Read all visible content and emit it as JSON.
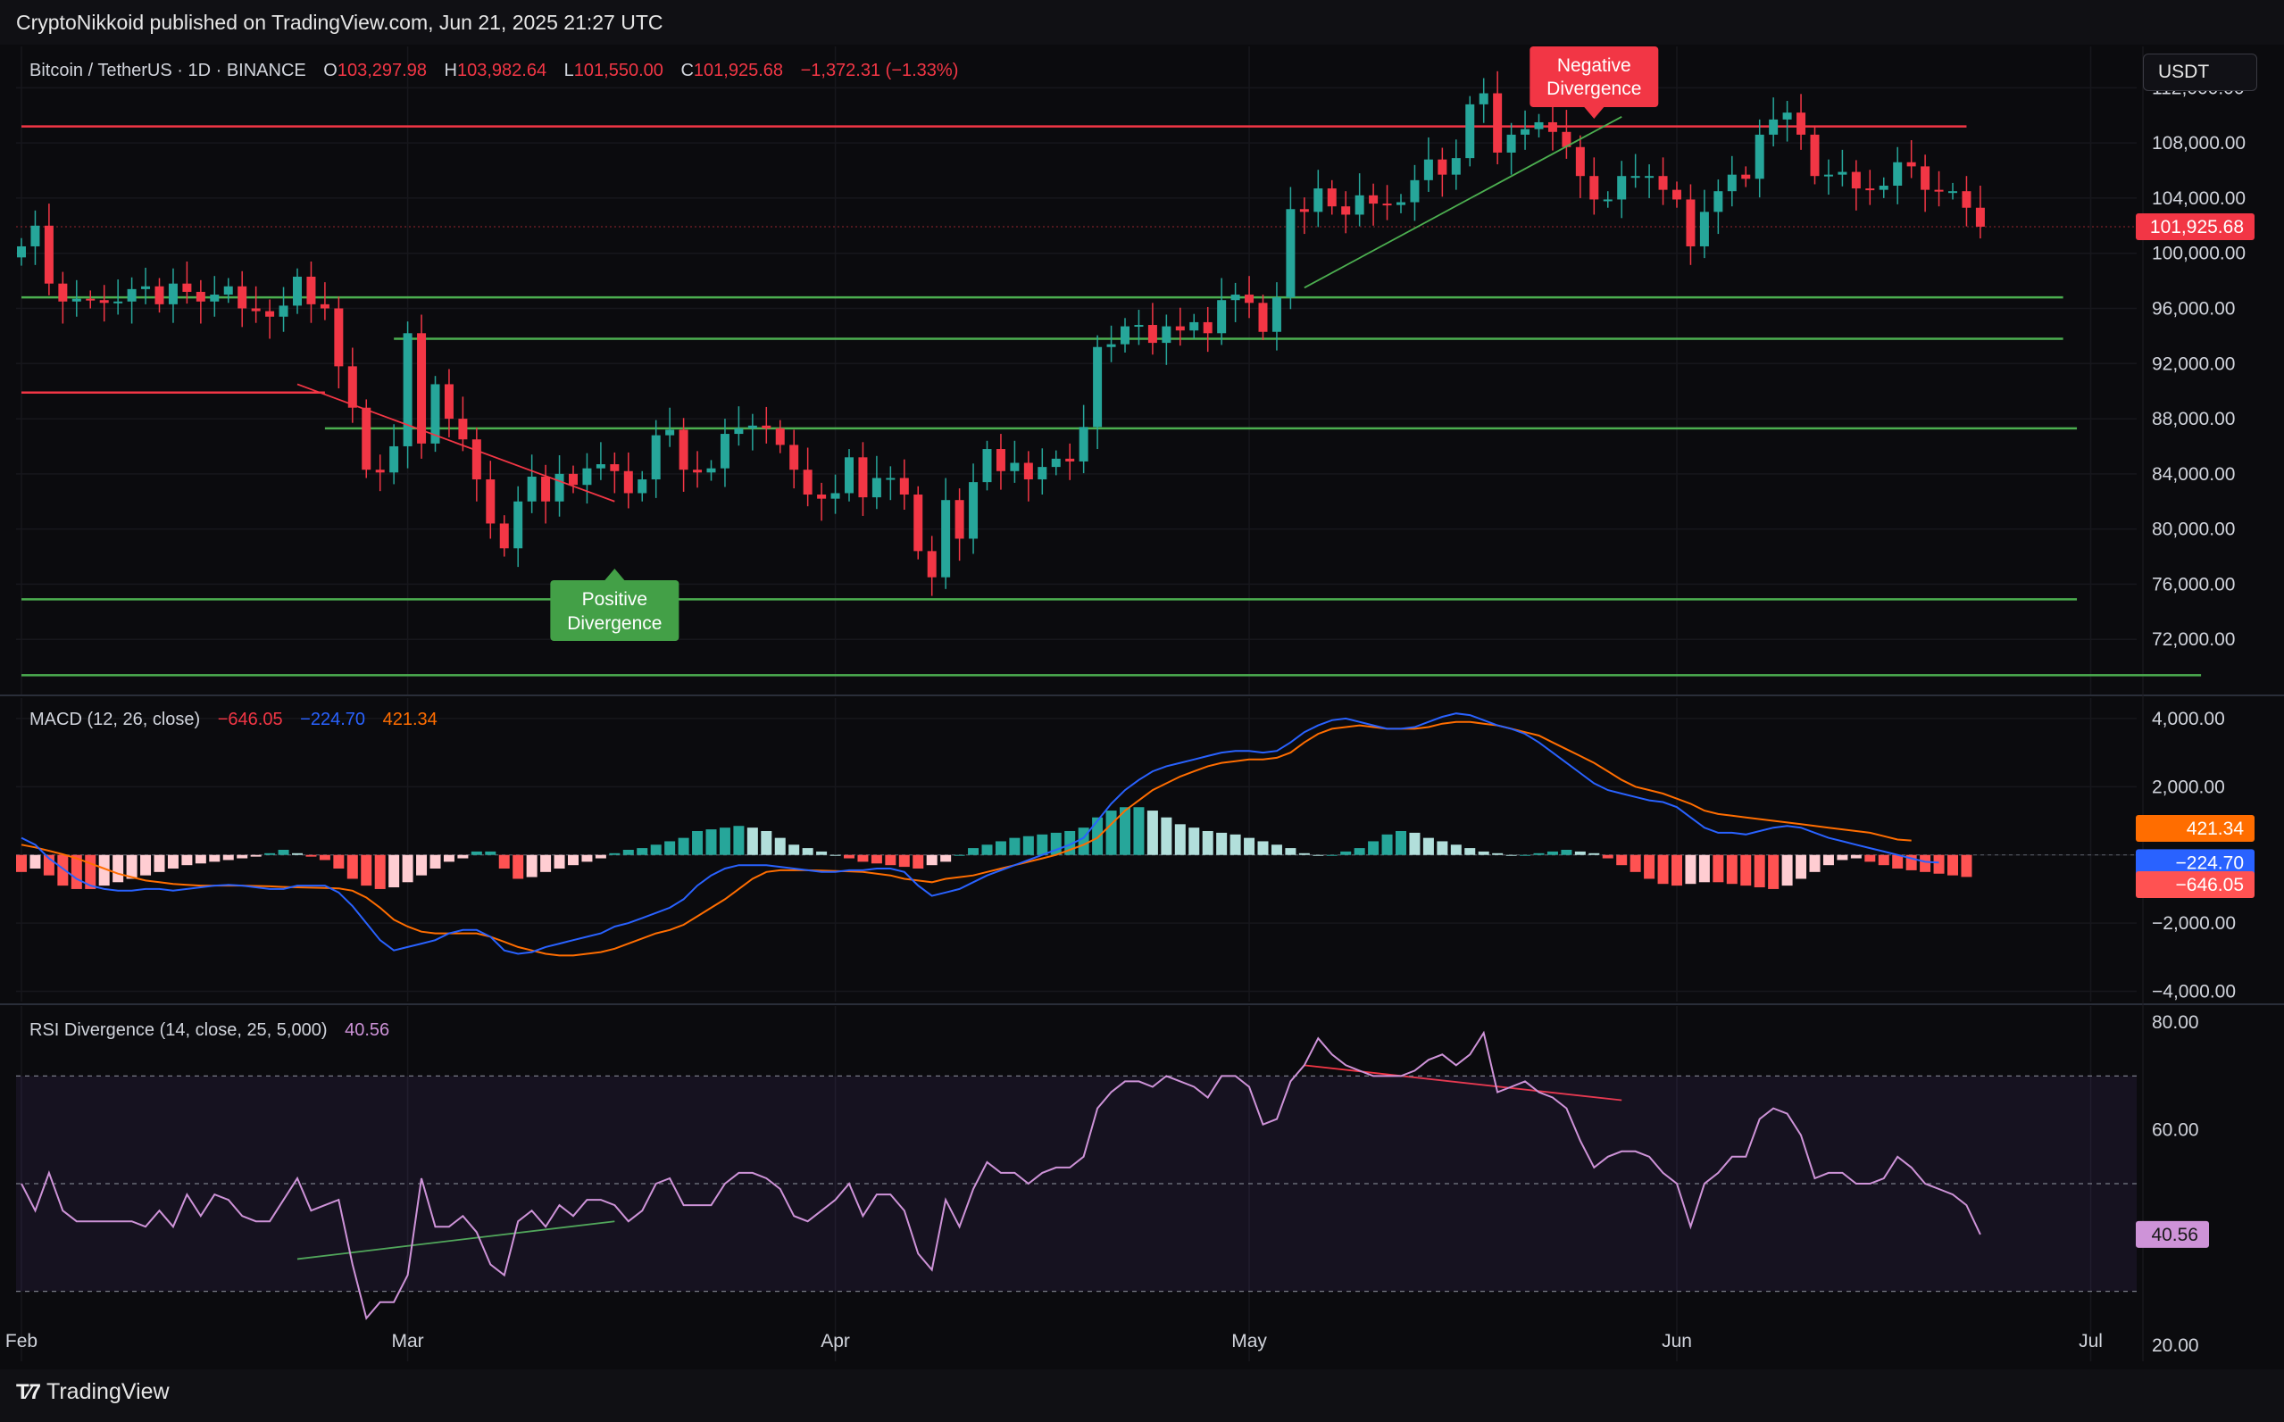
{
  "header": {
    "publisher": "CryptoNikkoid published on TradingView.com, Jun 21, 2025 21:27 UTC"
  },
  "symbol": {
    "name": "Bitcoin / TetherUS · 1D · BINANCE",
    "open_label": "O",
    "open": "103,297.98",
    "high_label": "H",
    "high": "103,982.64",
    "low_label": "L",
    "low": "101,550.00",
    "close_label": "C",
    "close": "101,925.68",
    "change": "−1,372.31 (−1.33%)"
  },
  "currency_button": "USDT",
  "annotations": {
    "negative_divergence": [
      "Negative",
      "Divergence"
    ],
    "positive_divergence": [
      "Positive",
      "Divergence"
    ]
  },
  "macd_legend": {
    "name": "MACD (12, 26, close)",
    "hist": "−646.05",
    "macd": "−224.70",
    "signal": "421.34"
  },
  "rsi_legend": {
    "name": "RSI Divergence (14, close, 25, 5,000)",
    "value": "40.56"
  },
  "footer": {
    "brand": "TradingView",
    "logo_icon": "tradingview-logo-icon"
  },
  "colors": {
    "up": "#26a69a",
    "down": "#f23645",
    "macd": "#2962ff",
    "signal": "#ff6d00",
    "rsi": "#ce93d8",
    "level_green": "#4caf50",
    "level_red": "#f23645"
  },
  "chart_data": [
    {
      "type": "candlestick",
      "title": "Bitcoin / TetherUS · 1D · BINANCE",
      "ylim": [
        68000,
        115000
      ],
      "y_ticks": [
        72000,
        76000,
        80000,
        84000,
        88000,
        92000,
        96000,
        100000,
        104000,
        108000,
        112000
      ],
      "y_tick_labels": [
        "72,000.00",
        "76,000.00",
        "80,000.00",
        "84,000.00",
        "88,000.00",
        "92,000.00",
        "96,000.00",
        "100,000.00",
        "104,000.00",
        "108,000.00",
        "112,000.00"
      ],
      "x_ticks": [
        {
          "label": "Feb",
          "date": "2025-02-01"
        },
        {
          "label": "Mar",
          "date": "2025-03-01"
        },
        {
          "label": "Apr",
          "date": "2025-04-01"
        },
        {
          "label": "May",
          "date": "2025-05-01"
        },
        {
          "label": "Jun",
          "date": "2025-06-01"
        },
        {
          "label": "Jul",
          "date": "2025-07-01"
        }
      ],
      "first_date": "2025-02-01",
      "last_price": 101925.68,
      "last_price_label": "101,925.68",
      "close": [
        100500,
        102000,
        97800,
        96500,
        96700,
        96600,
        96400,
        96500,
        97400,
        97600,
        96300,
        97800,
        97200,
        96500,
        97000,
        97600,
        96000,
        95800,
        95400,
        96200,
        98300,
        96300,
        96000,
        91800,
        88800,
        84300,
        84100,
        86000,
        94200,
        86200,
        90500,
        88000,
        86500,
        83600,
        80400,
        78600,
        82000,
        83800,
        82000,
        84000,
        83200,
        84400,
        84700,
        84200,
        82600,
        83600,
        86800,
        87200,
        84300,
        84100,
        84400,
        86900,
        87300,
        87500,
        87300,
        86100,
        84300,
        82500,
        82200,
        82600,
        85200,
        82300,
        83700,
        83700,
        82500,
        78400,
        76500,
        82100,
        79300,
        83400,
        85800,
        84200,
        84800,
        83600,
        84500,
        85100,
        84900,
        87400,
        93200,
        93400,
        94700,
        94800,
        93500,
        94700,
        94400,
        95000,
        94200,
        96600,
        97000,
        96400,
        94300,
        96800,
        103200,
        103000,
        104700,
        103400,
        102800,
        104200,
        103600,
        103500,
        103700,
        105300,
        106800,
        105700,
        106900,
        110800,
        111600,
        107300,
        108600,
        109000,
        109500,
        108800,
        107700,
        105600,
        103900,
        103900,
        105600,
        105600,
        105600,
        104600,
        103900,
        100500,
        103000,
        104500,
        105700,
        105400,
        108600,
        109700,
        110200,
        108600,
        105600,
        105700,
        105900,
        104700,
        104600,
        104900,
        106600,
        106300,
        104600,
        104500,
        104500,
        103300,
        101926
      ],
      "levels": {
        "red": [
          {
            "y": 109200,
            "x_from": "2025-02-01",
            "x_to": "2025-06-22"
          },
          {
            "y": 89900,
            "x_from": "2025-02-01",
            "x_to": "2025-02-23"
          }
        ],
        "green": [
          {
            "y": 96800,
            "x_from": "2025-02-01",
            "x_to": "2025-06-29"
          },
          {
            "y": 93800,
            "x_from": "2025-02-28",
            "x_to": "2025-06-29"
          },
          {
            "y": 87300,
            "x_from": "2025-02-23",
            "x_to": "2025-06-30"
          },
          {
            "y": 74900,
            "x_from": "2025-02-01",
            "x_to": "2025-06-30"
          },
          {
            "y": 69400,
            "x_from": "2025-02-01",
            "x_to": "2025-07-09"
          }
        ]
      },
      "trendlines": [
        {
          "color": "down",
          "from": {
            "date": "2025-02-21",
            "y": 90500
          },
          "to": {
            "date": "2025-03-16",
            "y": 82000
          }
        },
        {
          "color": "up",
          "from": {
            "date": "2025-05-05",
            "y": 97500
          },
          "to": {
            "date": "2025-05-28",
            "y": 109900
          }
        }
      ]
    },
    {
      "type": "macd",
      "title": "MACD (12, 26, close)",
      "ylim": [
        -4300,
        4600
      ],
      "y_ticks": [
        -4000,
        -2000,
        0,
        2000,
        4000
      ],
      "y_tick_labels": [
        "−4,000.00",
        "−2,000.00",
        "",
        "2,000.00",
        "4,000.00"
      ],
      "macd": [
        500,
        300,
        -100,
        -400,
        -700,
        -900,
        -1000,
        -1050,
        -1050,
        -1000,
        -1000,
        -1050,
        -1000,
        -950,
        -900,
        -880,
        -900,
        -950,
        -1000,
        -1000,
        -900,
        -900,
        -900,
        -1100,
        -1500,
        -2000,
        -2500,
        -2800,
        -2700,
        -2600,
        -2500,
        -2300,
        -2200,
        -2200,
        -2400,
        -2800,
        -2900,
        -2850,
        -2700,
        -2600,
        -2500,
        -2400,
        -2300,
        -2100,
        -2000,
        -1850,
        -1700,
        -1550,
        -1300,
        -900,
        -600,
        -400,
        -300,
        -300,
        -300,
        -350,
        -400,
        -450,
        -500,
        -500,
        -450,
        -450,
        -400,
        -400,
        -500,
        -900,
        -1200,
        -1100,
        -1000,
        -800,
        -600,
        -450,
        -300,
        -150,
        0,
        150,
        300,
        500,
        1000,
        1500,
        1900,
        2200,
        2450,
        2600,
        2700,
        2800,
        2900,
        3000,
        3050,
        3050,
        3000,
        3050,
        3300,
        3600,
        3800,
        3950,
        4000,
        3900,
        3800,
        3700,
        3700,
        3750,
        3900,
        4050,
        4150,
        4100,
        3950,
        3800,
        3700,
        3550,
        3300,
        3000,
        2700,
        2400,
        2100,
        1900,
        1800,
        1700,
        1600,
        1550,
        1400,
        1100,
        800,
        650,
        650,
        600,
        700,
        800,
        850,
        800,
        650,
        500,
        400,
        300,
        200,
        100,
        0,
        -100,
        -200,
        -224.7
      ],
      "signal": [
        300,
        220,
        120,
        20,
        -100,
        -250,
        -400,
        -550,
        -650,
        -750,
        -800,
        -850,
        -880,
        -900,
        -900,
        -900,
        -900,
        -910,
        -920,
        -940,
        -950,
        -960,
        -970,
        -980,
        -1050,
        -1250,
        -1550,
        -1900,
        -2100,
        -2250,
        -2300,
        -2300,
        -2300,
        -2300,
        -2400,
        -2550,
        -2700,
        -2800,
        -2900,
        -2950,
        -2950,
        -2900,
        -2850,
        -2750,
        -2600,
        -2450,
        -2300,
        -2200,
        -2050,
        -1800,
        -1550,
        -1300,
        -1000,
        -700,
        -500,
        -450,
        -450,
        -450,
        -460,
        -470,
        -480,
        -500,
        -550,
        -600,
        -700,
        -750,
        -800,
        -700,
        -650,
        -600,
        -500,
        -400,
        -300,
        -200,
        -100,
        0,
        150,
        300,
        500,
        900,
        1300,
        1600,
        1900,
        2100,
        2300,
        2450,
        2600,
        2700,
        2750,
        2800,
        2800,
        2850,
        3000,
        3300,
        3550,
        3700,
        3750,
        3800,
        3750,
        3700,
        3700,
        3700,
        3750,
        3850,
        3900,
        3900,
        3850,
        3800,
        3700,
        3600,
        3500,
        3300,
        3100,
        2900,
        2700,
        2450,
        2200,
        2000,
        1900,
        1800,
        1650,
        1500,
        1300,
        1200,
        1150,
        1100,
        1050,
        1000,
        950,
        900,
        850,
        800,
        750,
        700,
        650,
        550,
        450,
        421.34
      ],
      "histogram": [
        -500,
        -400,
        -600,
        -900,
        -1000,
        -1000,
        -900,
        -800,
        -700,
        -600,
        -500,
        -400,
        -300,
        -250,
        -200,
        -150,
        -100,
        -50,
        50,
        150,
        50,
        -50,
        -150,
        -400,
        -700,
        -900,
        -1000,
        -950,
        -800,
        -600,
        -400,
        -200,
        -100,
        100,
        100,
        -400,
        -700,
        -650,
        -500,
        -400,
        -300,
        -200,
        -100,
        50,
        150,
        200,
        300,
        400,
        500,
        700,
        750,
        800,
        850,
        800,
        700,
        500,
        300,
        200,
        100,
        0,
        -100,
        -200,
        -250,
        -300,
        -350,
        -400,
        -300,
        -200,
        0,
        200,
        300,
        400,
        500,
        550,
        600,
        650,
        700,
        800,
        1100,
        1300,
        1400,
        1400,
        1300,
        1100,
        900,
        800,
        700,
        650,
        600,
        500,
        400,
        300,
        200,
        50,
        0,
        0,
        100,
        200,
        400,
        600,
        700,
        650,
        500,
        400,
        300,
        200,
        100,
        50,
        0,
        0,
        50,
        100,
        150,
        100,
        50,
        -100,
        -300,
        -500,
        -700,
        -850,
        -900,
        -850,
        -800,
        -800,
        -850,
        -900,
        -950,
        -1000,
        -900,
        -700,
        -500,
        -300,
        -150,
        -100,
        -200,
        -300,
        -400,
        -450,
        -500,
        -550,
        -600,
        -646.05
      ],
      "last_labels": [
        "421.34",
        "−224.70",
        "−646.05"
      ]
    },
    {
      "type": "rsi",
      "title": "RSI Divergence (14, close, 25, 5,000)",
      "ylim": [
        17,
        83
      ],
      "y_ticks": [
        20,
        60,
        80
      ],
      "y_tick_labels": [
        "20.00",
        "60.00",
        "80.00"
      ],
      "bands": [
        30,
        50,
        70
      ],
      "values": [
        50,
        45,
        52,
        45,
        43,
        43,
        43,
        43,
        43,
        42,
        45,
        42,
        48,
        44,
        48,
        47,
        44,
        43,
        43,
        47,
        51,
        45,
        46,
        47,
        35,
        25,
        28,
        28,
        33,
        51,
        42,
        42,
        44,
        41,
        35,
        33,
        43,
        45,
        42,
        46,
        44,
        47,
        47,
        46,
        43,
        45,
        50,
        51,
        46,
        46,
        46,
        50,
        52,
        52,
        51,
        49,
        44,
        43,
        45,
        47,
        50,
        44,
        48,
        48,
        45,
        37,
        34,
        47,
        42,
        49,
        54,
        52,
        52,
        50,
        52,
        53,
        53,
        55,
        64,
        67,
        69,
        69,
        68,
        70,
        69,
        68,
        66,
        70,
        70,
        68,
        61,
        62,
        69,
        72,
        77,
        74,
        72,
        71,
        70,
        70,
        70,
        71,
        73,
        74,
        72,
        74,
        78,
        67,
        68,
        69,
        67,
        66,
        64,
        58,
        53,
        55,
        56,
        56,
        55,
        52,
        50,
        42,
        50,
        52,
        55,
        55,
        62,
        64,
        63,
        59,
        51,
        52,
        52,
        50,
        50,
        51,
        55,
        53,
        50,
        49,
        48,
        46,
        40.56
      ],
      "trendlines": [
        {
          "color": "up",
          "from": {
            "date": "2025-02-21",
            "y": 36
          },
          "to": {
            "date": "2025-03-16",
            "y": 43
          }
        },
        {
          "color": "down",
          "from": {
            "date": "2025-05-05",
            "y": 72
          },
          "to": {
            "date": "2025-05-28",
            "y": 65.5
          }
        }
      ],
      "last_label": "40.56"
    }
  ]
}
